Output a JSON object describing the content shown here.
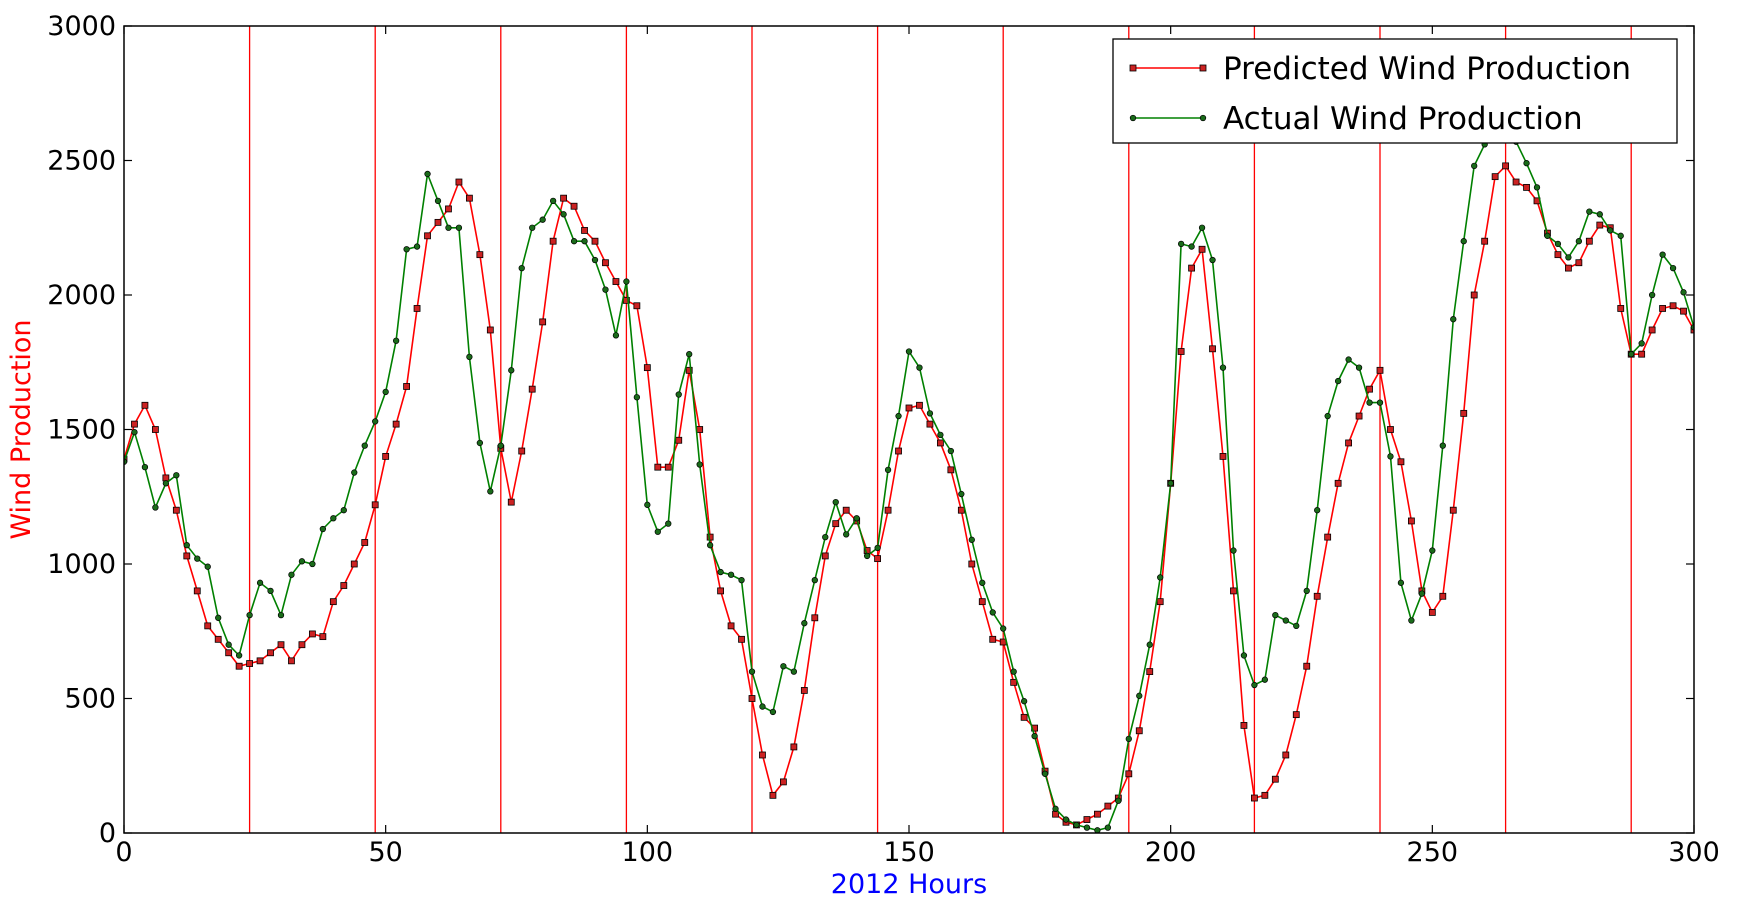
{
  "chart_data": {
    "type": "line",
    "xlabel": "2012 Hours",
    "ylabel": "Wind Production",
    "xlabel_color": "#0000ff",
    "ylabel_color": "#ff0000",
    "xlim": [
      0,
      300
    ],
    "ylim": [
      0,
      3000
    ],
    "x_ticks": [
      0,
      50,
      100,
      150,
      200,
      250,
      300
    ],
    "y_ticks": [
      0,
      500,
      1000,
      1500,
      2000,
      2500,
      3000
    ],
    "grid": false,
    "legend_position": "top-right",
    "vertical_lines": {
      "x": [
        24,
        48,
        72,
        96,
        120,
        144,
        168,
        192,
        216,
        240,
        264,
        288
      ],
      "color": "#ff0000"
    },
    "series": [
      {
        "name": "Predicted Wind Production",
        "color": "#ff0000",
        "marker": "square",
        "marker_fill": "#cc2222",
        "x_points": [
          0,
          2,
          4,
          6,
          8,
          10,
          12,
          14,
          16,
          18,
          20,
          22,
          24,
          26,
          28,
          30,
          32,
          34,
          36,
          38,
          40,
          42,
          44,
          46,
          48,
          50,
          52,
          54,
          56,
          58,
          60,
          62,
          64,
          66,
          68,
          70,
          72,
          74,
          76,
          78,
          80,
          82,
          84,
          86,
          88,
          90,
          92,
          94,
          96,
          98,
          100,
          102,
          104,
          106,
          108,
          110,
          112,
          114,
          116,
          118,
          120,
          122,
          124,
          126,
          128,
          130,
          132,
          134,
          136,
          138,
          140,
          142,
          144,
          146,
          148,
          150,
          152,
          154,
          156,
          158,
          160,
          162,
          164,
          166,
          168,
          170,
          172,
          174,
          176,
          178,
          180,
          182,
          184,
          186,
          188,
          190,
          192,
          194,
          196,
          198,
          200,
          202,
          204,
          206,
          208,
          210,
          212,
          214,
          216,
          218,
          220,
          222,
          224,
          226,
          228,
          230,
          232,
          234,
          236,
          238,
          240,
          242,
          244,
          246,
          248,
          250,
          252,
          254,
          256,
          258,
          260,
          262,
          264,
          266,
          268,
          270,
          272,
          274,
          276,
          278,
          280,
          282,
          284,
          286,
          288,
          290,
          292,
          294,
          296,
          298,
          300
        ],
        "y_points": [
          1390,
          1520,
          1590,
          1500,
          1320,
          1200,
          1030,
          900,
          770,
          720,
          670,
          620,
          630,
          640,
          670,
          700,
          640,
          700,
          740,
          730,
          860,
          920,
          1000,
          1080,
          1220,
          1400,
          1520,
          1660,
          1950,
          2220,
          2270,
          2320,
          2420,
          2360,
          2150,
          1870,
          1430,
          1230,
          1420,
          1650,
          1900,
          2200,
          2360,
          2330,
          2240,
          2200,
          2120,
          2050,
          1980,
          1960,
          1730,
          1360,
          1360,
          1460,
          1720,
          1500,
          1100,
          900,
          770,
          720,
          500,
          290,
          140,
          190,
          320,
          530,
          800,
          1030,
          1150,
          1200,
          1160,
          1050,
          1020,
          1200,
          1420,
          1580,
          1590,
          1520,
          1450,
          1350,
          1200,
          1000,
          860,
          720,
          710,
          560,
          430,
          390,
          230,
          70,
          40,
          30,
          50,
          70,
          100,
          130,
          220,
          380,
          600,
          860,
          1300,
          1790,
          2100,
          2170,
          1800,
          1400,
          900,
          400,
          130,
          140,
          200,
          290,
          440,
          620,
          880,
          1100,
          1300,
          1450,
          1550,
          1650,
          1720,
          1500,
          1380,
          1160,
          900,
          820,
          880,
          1200,
          1560,
          2000,
          2200,
          2440,
          2480,
          2420,
          2400,
          2350,
          2230,
          2150,
          2100,
          2120,
          2200,
          2260,
          2250,
          1950,
          1780,
          1780,
          1870,
          1950,
          1960,
          1940,
          1870
        ]
      },
      {
        "name": "Actual Wind Production",
        "color": "#008000",
        "marker": "circle",
        "marker_fill": "#1a6b1a",
        "x_points": [
          0,
          2,
          4,
          6,
          8,
          10,
          12,
          14,
          16,
          18,
          20,
          22,
          24,
          26,
          28,
          30,
          32,
          34,
          36,
          38,
          40,
          42,
          44,
          46,
          48,
          50,
          52,
          54,
          56,
          58,
          60,
          62,
          64,
          66,
          68,
          70,
          72,
          74,
          76,
          78,
          80,
          82,
          84,
          86,
          88,
          90,
          92,
          94,
          96,
          98,
          100,
          102,
          104,
          106,
          108,
          110,
          112,
          114,
          116,
          118,
          120,
          122,
          124,
          126,
          128,
          130,
          132,
          134,
          136,
          138,
          140,
          142,
          144,
          146,
          148,
          150,
          152,
          154,
          156,
          158,
          160,
          162,
          164,
          166,
          168,
          170,
          172,
          174,
          176,
          178,
          180,
          182,
          184,
          186,
          188,
          190,
          192,
          194,
          196,
          198,
          200,
          202,
          204,
          206,
          208,
          210,
          212,
          214,
          216,
          218,
          220,
          222,
          224,
          226,
          228,
          230,
          232,
          234,
          236,
          238,
          240,
          242,
          244,
          246,
          248,
          250,
          252,
          254,
          256,
          258,
          260,
          262,
          264,
          266,
          268,
          270,
          272,
          274,
          276,
          278,
          280,
          282,
          284,
          286,
          288,
          290,
          292,
          294,
          296,
          298,
          300
        ],
        "y_points": [
          1380,
          1490,
          1360,
          1210,
          1300,
          1330,
          1070,
          1020,
          990,
          800,
          700,
          660,
          810,
          930,
          900,
          810,
          960,
          1010,
          1000,
          1130,
          1170,
          1200,
          1340,
          1440,
          1530,
          1640,
          1830,
          2170,
          2180,
          2450,
          2350,
          2250,
          2250,
          1770,
          1450,
          1270,
          1440,
          1720,
          2100,
          2250,
          2280,
          2350,
          2300,
          2200,
          2200,
          2130,
          2020,
          1850,
          2050,
          1620,
          1220,
          1120,
          1150,
          1630,
          1780,
          1370,
          1070,
          970,
          960,
          940,
          600,
          470,
          450,
          620,
          600,
          780,
          940,
          1100,
          1230,
          1110,
          1170,
          1030,
          1060,
          1350,
          1550,
          1790,
          1730,
          1560,
          1480,
          1420,
          1260,
          1090,
          930,
          820,
          760,
          600,
          490,
          360,
          220,
          90,
          50,
          30,
          20,
          10,
          20,
          120,
          350,
          510,
          700,
          950,
          1300,
          2190,
          2180,
          2250,
          2130,
          1730,
          1050,
          660,
          550,
          570,
          810,
          790,
          770,
          900,
          1200,
          1550,
          1680,
          1760,
          1730,
          1600,
          1600,
          1400,
          930,
          790,
          890,
          1050,
          1440,
          1910,
          2200,
          2480,
          2560,
          2640,
          2660,
          2570,
          2490,
          2400,
          2220,
          2190,
          2140,
          2200,
          2310,
          2300,
          2240,
          2220,
          1780,
          1820,
          2000,
          2150,
          2100,
          2010,
          1880
        ]
      }
    ]
  }
}
